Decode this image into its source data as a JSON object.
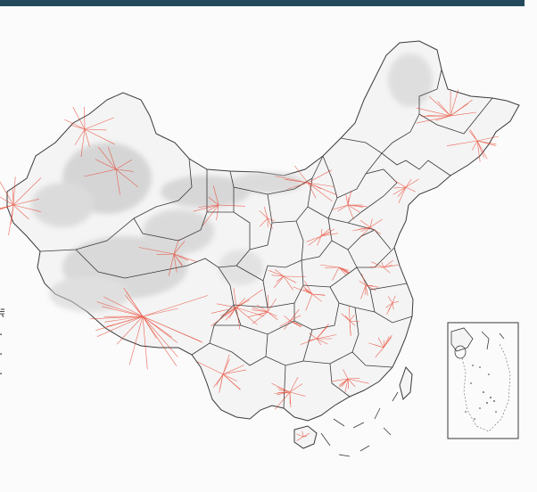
{
  "colors": {
    "header_bar": "#234a5c",
    "background": "#fbfbfb",
    "land_fill": "#f4f4f4",
    "relief_shade": "#bdbdbd",
    "boundary_line": "#3a3a3a",
    "flow_line": "#e8351f"
  },
  "edge_text": {
    "line1": "寺",
    "line2": "·",
    "line3": "·",
    "line4": "·"
  },
  "hubs": [
    {
      "name": "tibet-hub",
      "lines": 24,
      "spread": 80
    },
    {
      "name": "xinjiang-west-hub",
      "lines": 14,
      "spread": 50
    },
    {
      "name": "xinjiang-north-hub",
      "lines": 10,
      "spread": 40
    },
    {
      "name": "xinjiang-east-hub",
      "lines": 8,
      "spread": 40
    },
    {
      "name": "qinghai-hub",
      "lines": 10,
      "spread": 45
    },
    {
      "name": "gansu-hub",
      "lines": 8,
      "spread": 35
    },
    {
      "name": "inner-mongolia-hub",
      "lines": 10,
      "spread": 40
    },
    {
      "name": "heilongjiang-hub",
      "lines": 12,
      "spread": 40
    },
    {
      "name": "jilin-hub",
      "lines": 10,
      "spread": 35
    },
    {
      "name": "liaoning-hub",
      "lines": 8,
      "spread": 25
    },
    {
      "name": "sichuan-hub",
      "lines": 14,
      "spread": 40
    },
    {
      "name": "yunnan-hub",
      "lines": 12,
      "spread": 35
    },
    {
      "name": "guizhou-hub",
      "lines": 10,
      "spread": 25
    },
    {
      "name": "guangxi-hub",
      "lines": 12,
      "spread": 30
    },
    {
      "name": "hunan-hub",
      "lines": 9,
      "spread": 25
    },
    {
      "name": "hubei-hub",
      "lines": 9,
      "spread": 25
    },
    {
      "name": "henan-hub",
      "lines": 9,
      "spread": 22
    },
    {
      "name": "shandong-hub",
      "lines": 9,
      "spread": 22
    },
    {
      "name": "hebei-hub",
      "lines": 10,
      "spread": 25
    },
    {
      "name": "shanxi-hub",
      "lines": 8,
      "spread": 22
    },
    {
      "name": "shaanxi-hub",
      "lines": 8,
      "spread": 25
    },
    {
      "name": "jiangxi-hub",
      "lines": 8,
      "spread": 22
    },
    {
      "name": "anhui-hub",
      "lines": 8,
      "spread": 20
    },
    {
      "name": "jiangsu-hub",
      "lines": 7,
      "spread": 18
    },
    {
      "name": "zhejiang-hub",
      "lines": 7,
      "spread": 18
    },
    {
      "name": "fujian-hub",
      "lines": 8,
      "spread": 20
    },
    {
      "name": "guangdong-hub",
      "lines": 10,
      "spread": 28
    },
    {
      "name": "chongqing-hub",
      "lines": 8,
      "spread": 20
    },
    {
      "name": "ningxia-hub",
      "lines": 6,
      "spread": 18
    },
    {
      "name": "hainan-hub",
      "lines": 5,
      "spread": 10
    }
  ]
}
